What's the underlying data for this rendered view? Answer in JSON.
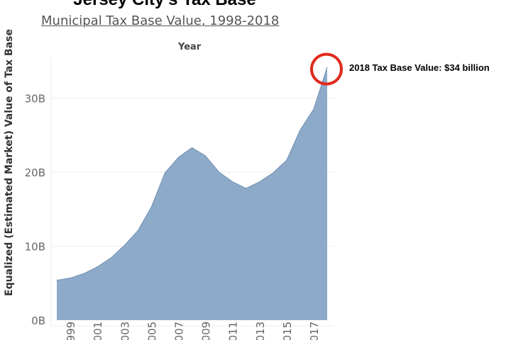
{
  "chart_data": {
    "type": "area",
    "title": "Jersey City's Tax Base",
    "subtitle": "Municipal Tax Base Value, 1998-2018",
    "xlabel": "Year",
    "ylabel": "Equalized (Estimated Market) Value of Tax Base",
    "x": [
      1998,
      1999,
      2000,
      2001,
      2002,
      2003,
      2004,
      2005,
      2006,
      2007,
      2008,
      2009,
      2010,
      2011,
      2012,
      2013,
      2014,
      2015,
      2016,
      2017,
      2018
    ],
    "values": [
      5.4,
      5.7,
      6.3,
      7.2,
      8.4,
      10.1,
      12.1,
      15.3,
      19.9,
      22.0,
      23.3,
      22.2,
      20.0,
      18.7,
      17.8,
      18.7,
      19.9,
      21.6,
      25.7,
      28.5,
      34.2
    ],
    "units": "billion USD",
    "ylim": [
      0,
      35
    ],
    "yticks": [
      0,
      10,
      20,
      30
    ],
    "ytick_labels": [
      "0B",
      "10B",
      "20B",
      "30B"
    ],
    "xtick_labels": [
      "1999",
      "2001",
      "2003",
      "2005",
      "2007",
      "2009",
      "2011",
      "2013",
      "2015",
      "2017"
    ],
    "xtick_values": [
      1999,
      2001,
      2003,
      2005,
      2007,
      2009,
      2011,
      2013,
      2015,
      2017
    ],
    "grid": true,
    "annotation": "2018 Tax Base Value: $34 billion",
    "colors": {
      "fill": "#8eaac9",
      "line": "#6f8fb5",
      "highlight": "#e02a1c"
    }
  }
}
